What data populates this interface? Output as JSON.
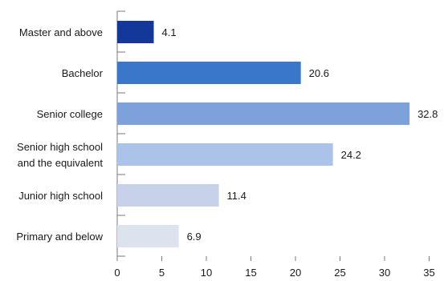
{
  "chart_data": {
    "type": "bar",
    "orientation": "horizontal",
    "categories": [
      [
        "Master and above"
      ],
      [
        "Bachelor"
      ],
      [
        "Senior college"
      ],
      [
        "Senior high school",
        "and the equivalent"
      ],
      [
        "Junior high school"
      ],
      [
        "Primary and below"
      ]
    ],
    "values": [
      4.1,
      20.6,
      32.8,
      24.2,
      11.4,
      6.9
    ],
    "value_labels": [
      "4.1",
      "20.6",
      "32.8",
      "24.2",
      "11.4",
      "6.9"
    ],
    "bar_colors": [
      "#14379a",
      "#3a76c9",
      "#7da1db",
      "#aac4e9",
      "#c7d2ea",
      "#dde2ef"
    ],
    "xlim": [
      0,
      35
    ],
    "x_ticks": [
      0,
      5,
      10,
      15,
      20,
      25,
      30,
      35
    ],
    "x_tick_labels": [
      "0",
      "5",
      "10",
      "15",
      "20",
      "25",
      "30",
      "35"
    ],
    "title": "",
    "xlabel": "",
    "ylabel": "",
    "grid": false,
    "legend": "none"
  }
}
